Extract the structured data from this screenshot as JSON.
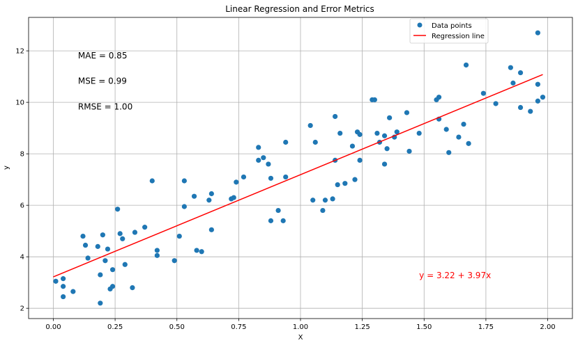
{
  "chart_data": {
    "type": "scatter",
    "title": "Linear Regression and Error Metrics",
    "xlabel": "X",
    "ylabel": "y",
    "xlim": [
      -0.1,
      2.1
    ],
    "ylim": [
      1.6,
      13.3
    ],
    "xticks": [
      "0.00",
      "0.25",
      "0.50",
      "0.75",
      "1.00",
      "1.25",
      "1.50",
      "1.75",
      "2.00"
    ],
    "xtick_values": [
      0,
      0.25,
      0.5,
      0.75,
      1.0,
      1.25,
      1.5,
      1.75,
      2.0
    ],
    "yticks": [
      "2",
      "4",
      "6",
      "8",
      "10",
      "12"
    ],
    "ytick_values": [
      2,
      4,
      6,
      8,
      10,
      12
    ],
    "grid": true,
    "legend_position": "top-right",
    "series": [
      {
        "name": "Data points",
        "kind": "scatter",
        "color": "#1f77b4",
        "points": [
          [
            0.01,
            3.05
          ],
          [
            0.04,
            2.85
          ],
          [
            0.04,
            3.15
          ],
          [
            0.04,
            2.45
          ],
          [
            0.08,
            2.65
          ],
          [
            0.12,
            4.8
          ],
          [
            0.13,
            4.45
          ],
          [
            0.14,
            3.95
          ],
          [
            0.18,
            4.4
          ],
          [
            0.19,
            2.2
          ],
          [
            0.19,
            3.3
          ],
          [
            0.2,
            4.85
          ],
          [
            0.21,
            3.85
          ],
          [
            0.22,
            4.3
          ],
          [
            0.23,
            2.75
          ],
          [
            0.24,
            2.85
          ],
          [
            0.24,
            3.5
          ],
          [
            0.26,
            5.85
          ],
          [
            0.27,
            4.9
          ],
          [
            0.28,
            4.7
          ],
          [
            0.29,
            3.7
          ],
          [
            0.32,
            2.8
          ],
          [
            0.33,
            4.95
          ],
          [
            0.37,
            5.15
          ],
          [
            0.4,
            6.95
          ],
          [
            0.42,
            4.05
          ],
          [
            0.42,
            4.25
          ],
          [
            0.49,
            3.85
          ],
          [
            0.51,
            4.8
          ],
          [
            0.53,
            6.95
          ],
          [
            0.53,
            5.95
          ],
          [
            0.57,
            6.35
          ],
          [
            0.58,
            4.25
          ],
          [
            0.6,
            4.2
          ],
          [
            0.63,
            6.2
          ],
          [
            0.64,
            6.45
          ],
          [
            0.64,
            5.05
          ],
          [
            0.72,
            6.25
          ],
          [
            0.73,
            6.3
          ],
          [
            0.74,
            6.9
          ],
          [
            0.77,
            7.1
          ],
          [
            0.83,
            8.25
          ],
          [
            0.83,
            7.75
          ],
          [
            0.85,
            7.85
          ],
          [
            0.87,
            7.6
          ],
          [
            0.88,
            7.05
          ],
          [
            0.88,
            5.4
          ],
          [
            0.91,
            5.8
          ],
          [
            0.93,
            5.4
          ],
          [
            0.94,
            8.45
          ],
          [
            0.94,
            7.1
          ],
          [
            1.04,
            9.1
          ],
          [
            1.05,
            6.2
          ],
          [
            1.06,
            8.45
          ],
          [
            1.09,
            5.8
          ],
          [
            1.1,
            6.2
          ],
          [
            1.13,
            6.25
          ],
          [
            1.14,
            9.45
          ],
          [
            1.14,
            7.75
          ],
          [
            1.15,
            6.8
          ],
          [
            1.16,
            8.8
          ],
          [
            1.18,
            6.85
          ],
          [
            1.21,
            8.3
          ],
          [
            1.22,
            7.0
          ],
          [
            1.23,
            8.85
          ],
          [
            1.24,
            8.75
          ],
          [
            1.24,
            7.75
          ],
          [
            1.29,
            10.1
          ],
          [
            1.3,
            10.1
          ],
          [
            1.31,
            8.8
          ],
          [
            1.32,
            8.45
          ],
          [
            1.34,
            7.6
          ],
          [
            1.34,
            8.7
          ],
          [
            1.35,
            8.2
          ],
          [
            1.36,
            9.4
          ],
          [
            1.38,
            8.65
          ],
          [
            1.39,
            8.85
          ],
          [
            1.43,
            9.6
          ],
          [
            1.44,
            8.1
          ],
          [
            1.48,
            8.8
          ],
          [
            1.55,
            10.1
          ],
          [
            1.56,
            10.2
          ],
          [
            1.56,
            9.35
          ],
          [
            1.59,
            8.95
          ],
          [
            1.6,
            8.05
          ],
          [
            1.64,
            8.65
          ],
          [
            1.66,
            9.15
          ],
          [
            1.67,
            11.45
          ],
          [
            1.68,
            8.4
          ],
          [
            1.74,
            10.35
          ],
          [
            1.79,
            9.95
          ],
          [
            1.85,
            11.35
          ],
          [
            1.86,
            10.75
          ],
          [
            1.89,
            11.15
          ],
          [
            1.89,
            9.8
          ],
          [
            1.93,
            9.65
          ],
          [
            1.96,
            10.05
          ],
          [
            1.96,
            10.7
          ],
          [
            1.96,
            12.7
          ],
          [
            1.98,
            10.2
          ]
        ]
      },
      {
        "name": "Regression line",
        "kind": "line",
        "color": "#ff0000",
        "x": [
          0.0,
          1.98
        ],
        "y": [
          3.22,
          11.08
        ]
      }
    ],
    "annotations": [
      {
        "text": "MAE = 0.85",
        "x": 0.1,
        "y": 11.7,
        "color": "#000000"
      },
      {
        "text": "MSE = 0.99",
        "x": 0.1,
        "y": 10.72,
        "color": "#000000"
      },
      {
        "text": "RMSE = 1.00",
        "x": 0.1,
        "y": 9.72,
        "color": "#000000"
      },
      {
        "text": "y = 3.22 + 3.97x",
        "x": 1.48,
        "y": 3.17,
        "color": "#ff0000"
      }
    ]
  }
}
